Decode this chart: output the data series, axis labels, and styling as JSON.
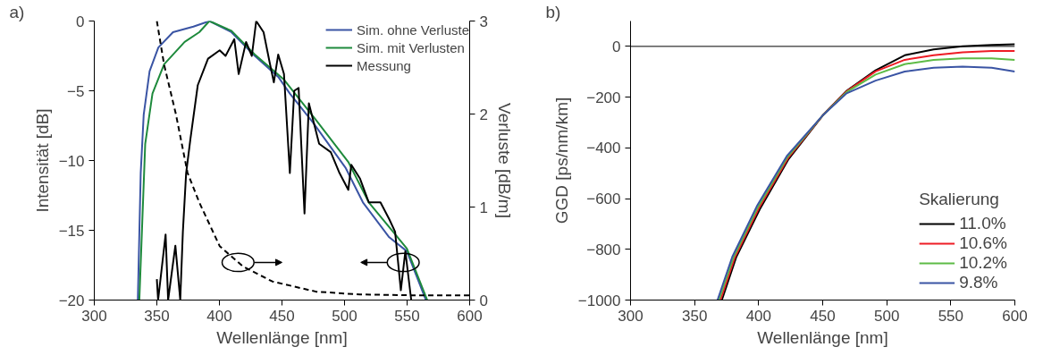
{
  "chart_data": [
    {
      "type": "line",
      "annotations": [
        "a)"
      ],
      "xlabel": "Wellenlänge [nm]",
      "ylabel": "Intensität [dB]",
      "y2label": "Verluste [dB/m]",
      "xlim": [
        300,
        600
      ],
      "xticks": [
        300,
        350,
        400,
        450,
        500,
        550,
        600
      ],
      "ylim": [
        -20,
        0
      ],
      "yticks": [
        -20,
        -15,
        -10,
        -5,
        0
      ],
      "y2lim": [
        0,
        3
      ],
      "y2ticks": [
        0,
        1,
        2,
        3
      ],
      "legend": "top right",
      "grid": false,
      "series": [
        {
          "name": "Sim. ohne Verluste",
          "color": "#3a54a4",
          "x": [
            334.8,
            337.1,
            339.5,
            344.2,
            351.2,
            362.9,
            379.2,
            392.1,
            409.6,
            428.3,
            447,
            456.3,
            475,
            500.7,
            514.7,
            535.7,
            549.8,
            565
          ],
          "values": [
            -20,
            -10.9,
            -6.7,
            -3.6,
            -1.9,
            -0.8,
            -0.4,
            0,
            -0.8,
            -2.5,
            -4.0,
            -5.2,
            -7.3,
            -10.5,
            -13,
            -15.5,
            -16.5,
            -20
          ]
        },
        {
          "name": "Sim. mit Verlusten",
          "color": "#1e8a3c",
          "x": [
            336,
            340.7,
            346.5,
            355.8,
            372.2,
            383.9,
            392,
            409.6,
            428.3,
            451.6,
            477.3,
            503,
            519.4,
            549.8,
            566.1
          ],
          "values": [
            -20,
            -8.8,
            -5.2,
            -3.1,
            -1.5,
            -0.8,
            0,
            -0.7,
            -2.4,
            -4.2,
            -7.1,
            -10.1,
            -13,
            -16.3,
            -20
          ]
        },
        {
          "name": "Messung",
          "color": "#000000",
          "x": [
            350,
            351,
            357,
            359,
            364.8,
            368.7,
            370.8,
            373.4,
            376.9,
            382.7,
            390.9,
            400.2,
            404.9,
            411.9,
            415.4,
            421.3,
            425.9,
            429.4,
            435.3,
            440,
            443.5,
            447,
            451.6,
            456.3,
            459.8,
            463.3,
            468,
            471.5,
            479.7,
            489,
            496,
            503,
            505.4,
            512.4,
            519.4,
            528.7,
            535.7,
            540.4,
            545,
            548.6,
            553.3
          ],
          "values": [
            -18.5,
            -20,
            -15.3,
            -20,
            -16.1,
            -20,
            -15.1,
            -10.9,
            -8.4,
            -4.6,
            -2.7,
            -2.1,
            -2.5,
            -1.3,
            -3.8,
            -1.5,
            -2.5,
            0,
            -0.8,
            -2.9,
            -4.4,
            -2.4,
            -3.8,
            -10.9,
            -5.0,
            -4.8,
            -13.8,
            -5.9,
            -8.8,
            -9.4,
            -10.9,
            -12.1,
            -10.3,
            -11.3,
            -13,
            -13,
            -14.2,
            -15.1,
            -19.3,
            -16.5,
            -20
          ]
        },
        {
          "color": "#000000",
          "axis": "y2",
          "line_style": "dashed",
          "x": [
            350,
            355.8,
            365.2,
            374.5,
            383.9,
            400.2,
            418.9,
            442.3,
            477.3,
            512.4,
            559,
            600
          ],
          "values": [
            3.0,
            2.53,
            2.0,
            1.37,
            1.05,
            0.58,
            0.36,
            0.2,
            0.09,
            0.06,
            0.05,
            0.05
          ]
        }
      ]
    },
    {
      "type": "line",
      "annotations": [
        "b)"
      ],
      "xlabel": "Wellenlänge [nm]",
      "ylabel": "GGD [ps/nm/km]",
      "legend_title": "Skalierung",
      "xlim": [
        300,
        600
      ],
      "xticks": [
        300,
        350,
        400,
        450,
        500,
        550,
        600
      ],
      "ylim": [
        -1000,
        100
      ],
      "yticks": [
        -1000,
        -800,
        -600,
        -400,
        -200,
        0
      ],
      "legend": "bottom right",
      "grid": false,
      "ref_lines": [
        {
          "axis": "y",
          "value": 0,
          "color": "#000000"
        }
      ],
      "series": [
        {
          "name": "11.0%",
          "color": "#000000",
          "x": [
            371.3,
            382.6,
            400.8,
            423.4,
            450.6,
            468.7,
            491.3,
            514,
            536.6,
            559.2,
            581.9,
            600
          ],
          "values": [
            -1000,
            -830,
            -643,
            -444,
            -269,
            -175,
            -94,
            -35,
            -12,
            0,
            6,
            8
          ]
        },
        {
          "name": "10.6%",
          "color": "#ee1c25",
          "x": [
            370.2,
            381.6,
            400.2,
            423,
            450.6,
            468.7,
            491.3,
            514,
            536.6,
            559.2,
            581.9,
            600
          ],
          "values": [
            -1000,
            -830,
            -638,
            -440,
            -269,
            -177,
            -99,
            -53,
            -35,
            -23,
            -18,
            -18
          ]
        },
        {
          "name": "10.2%",
          "color": "#5dbb46",
          "x": [
            369,
            380.5,
            399.6,
            422.5,
            450.6,
            468.7,
            491.3,
            514,
            536.6,
            559.2,
            581.9,
            600
          ],
          "values": [
            -1000,
            -830,
            -632,
            -436,
            -269,
            -180,
            -111,
            -70,
            -53,
            -47,
            -47,
            -53
          ]
        },
        {
          "name": "9.8%",
          "color": "#3a54a4",
          "x": [
            367.9,
            379.4,
            399,
            422,
            450.6,
            468.7,
            491.3,
            514,
            536.6,
            559.2,
            581.9,
            600
          ],
          "values": [
            -1000,
            -830,
            -626,
            -432,
            -269,
            -185,
            -135,
            -99,
            -84,
            -80,
            -84,
            -99
          ]
        }
      ]
    }
  ]
}
